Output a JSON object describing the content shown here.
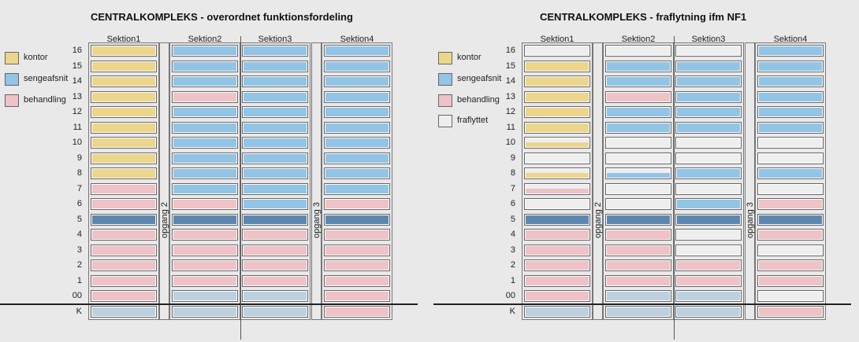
{
  "colors": {
    "kontor": "#ecd68c",
    "sengeafsnit": "#92c4e6",
    "behandling": "#eec2c6",
    "fraflyttet": "#eeeeee",
    "floor5": "#5e87b0",
    "lightblue": "#bcd0e0"
  },
  "floors": [
    "16",
    "15",
    "14",
    "13",
    "12",
    "11",
    "10",
    "9",
    "8",
    "7",
    "6",
    "5",
    "4",
    "3",
    "2",
    "1",
    "00",
    "K"
  ],
  "panels": [
    {
      "title": "CENTRALKOMPLEKS - overordnet funktionsfordeling",
      "sections": [
        "Sektion1",
        "Sektion2",
        "Sektion3",
        "Sektion4"
      ],
      "stairs": [
        "opgang 2",
        "opgang 3"
      ],
      "legend": [
        {
          "label": "kontor",
          "color": "kontor"
        },
        {
          "label": "sengeafsnit",
          "color": "sengeafsnit"
        },
        {
          "label": "behandling",
          "color": "behandling"
        }
      ],
      "grid": [
        [
          "kontor",
          "sengeafsnit",
          "sengeafsnit",
          "sengeafsnit"
        ],
        [
          "kontor",
          "sengeafsnit",
          "sengeafsnit",
          "sengeafsnit"
        ],
        [
          "kontor",
          "sengeafsnit",
          "sengeafsnit",
          "sengeafsnit"
        ],
        [
          "kontor",
          "behandling",
          "sengeafsnit",
          "sengeafsnit"
        ],
        [
          "kontor",
          "sengeafsnit",
          "sengeafsnit",
          "sengeafsnit"
        ],
        [
          "kontor",
          "sengeafsnit",
          "sengeafsnit",
          "sengeafsnit"
        ],
        [
          "kontor",
          "sengeafsnit",
          "sengeafsnit",
          "sengeafsnit"
        ],
        [
          "kontor",
          "sengeafsnit",
          "sengeafsnit",
          "sengeafsnit"
        ],
        [
          "kontor",
          "sengeafsnit",
          "sengeafsnit",
          "sengeafsnit"
        ],
        [
          "behandling",
          "sengeafsnit",
          "sengeafsnit",
          "sengeafsnit"
        ],
        [
          "behandling",
          "behandling",
          "sengeafsnit",
          "behandling"
        ],
        [
          "floor5",
          "floor5",
          "floor5",
          "floor5"
        ],
        [
          "behandling",
          "behandling",
          "behandling",
          "behandling"
        ],
        [
          "behandling",
          "behandling",
          "behandling",
          "behandling"
        ],
        [
          "behandling",
          "behandling",
          "behandling",
          "behandling"
        ],
        [
          "behandling",
          "behandling",
          "behandling",
          "behandling"
        ],
        [
          "behandling",
          "lightblue",
          "lightblue",
          "behandling"
        ],
        [
          "lightblue",
          "lightblue",
          "lightblue",
          "behandling"
        ]
      ]
    },
    {
      "title": "CENTRALKOMPLEKS - fraflytning ifm NF1",
      "sections": [
        "Sektion1",
        "Sektion2",
        "Sektion3",
        "Sektion4"
      ],
      "stairs": [
        "opgang 2",
        "opgang 3"
      ],
      "legend": [
        {
          "label": "kontor",
          "color": "kontor"
        },
        {
          "label": "sengeafsnit",
          "color": "sengeafsnit"
        },
        {
          "label": "behandling",
          "color": "behandling"
        },
        {
          "label": "fraflyttet",
          "color": "fraflyttet"
        }
      ],
      "grid": [
        [
          "fraflyttet",
          "fraflyttet",
          "fraflyttet",
          "sengeafsnit"
        ],
        [
          "kontor",
          "sengeafsnit",
          "sengeafsnit",
          "sengeafsnit"
        ],
        [
          "kontor",
          "sengeafsnit",
          "sengeafsnit",
          "sengeafsnit"
        ],
        [
          "kontor",
          "behandling",
          "sengeafsnit",
          "sengeafsnit"
        ],
        [
          "kontor",
          "sengeafsnit",
          "sengeafsnit",
          "sengeafsnit"
        ],
        [
          "kontor",
          "sengeafsnit",
          "sengeafsnit",
          "sengeafsnit"
        ],
        [
          "fraflyttet/kontor",
          "fraflyttet",
          "fraflyttet",
          "fraflyttet"
        ],
        [
          "fraflyttet",
          "fraflyttet",
          "fraflyttet",
          "fraflyttet"
        ],
        [
          "fraflyttet/kontor",
          "fraflyttet/sengeafsnit",
          "sengeafsnit",
          "sengeafsnit"
        ],
        [
          "fraflyttet/behandling",
          "fraflyttet",
          "fraflyttet",
          "fraflyttet"
        ],
        [
          "fraflyttet",
          "fraflyttet",
          "sengeafsnit",
          "behandling"
        ],
        [
          "floor5",
          "floor5",
          "floor5",
          "floor5"
        ],
        [
          "behandling",
          "behandling",
          "fraflyttet",
          "behandling"
        ],
        [
          "behandling",
          "behandling",
          "fraflyttet",
          "fraflyttet"
        ],
        [
          "behandling",
          "behandling",
          "behandling",
          "behandling"
        ],
        [
          "behandling",
          "behandling",
          "behandling",
          "behandling"
        ],
        [
          "behandling",
          "lightblue",
          "lightblue",
          "fraflyttet"
        ],
        [
          "lightblue",
          "lightblue",
          "lightblue",
          "behandling"
        ]
      ]
    }
  ]
}
